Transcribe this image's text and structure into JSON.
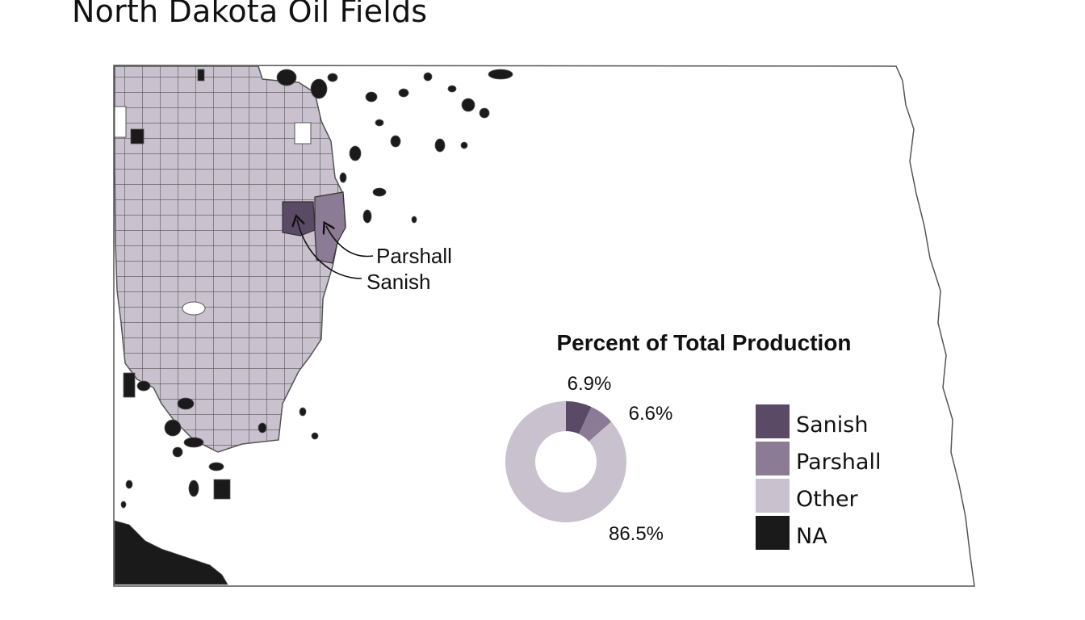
{
  "title": "North Dakota Oil Fields",
  "colors": {
    "Sanish": "#5b4a66",
    "Parshall": "#8b7b95",
    "Other": "#c9c1cd",
    "NA": "#1a1a1a",
    "border": "#555555"
  },
  "annotations": {
    "parshall": "Parshall",
    "sanish": "Sanish"
  },
  "legend": {
    "items": [
      {
        "label": "Sanish",
        "color": "#5b4a66"
      },
      {
        "label": "Parshall",
        "color": "#8b7b95"
      },
      {
        "label": "Other",
        "color": "#c9c1cd"
      },
      {
        "label": "NA",
        "color": "#1a1a1a"
      }
    ]
  },
  "chart_data": {
    "type": "pie",
    "title": "Percent of Total Production",
    "categories": [
      "Sanish",
      "Parshall",
      "Other"
    ],
    "values": [
      6.9,
      6.6,
      86.5
    ],
    "labels": [
      "6.9%",
      "6.6%",
      "86.5%"
    ],
    "colors": [
      "#5b4a66",
      "#8b7b95",
      "#c9c1cd"
    ]
  }
}
